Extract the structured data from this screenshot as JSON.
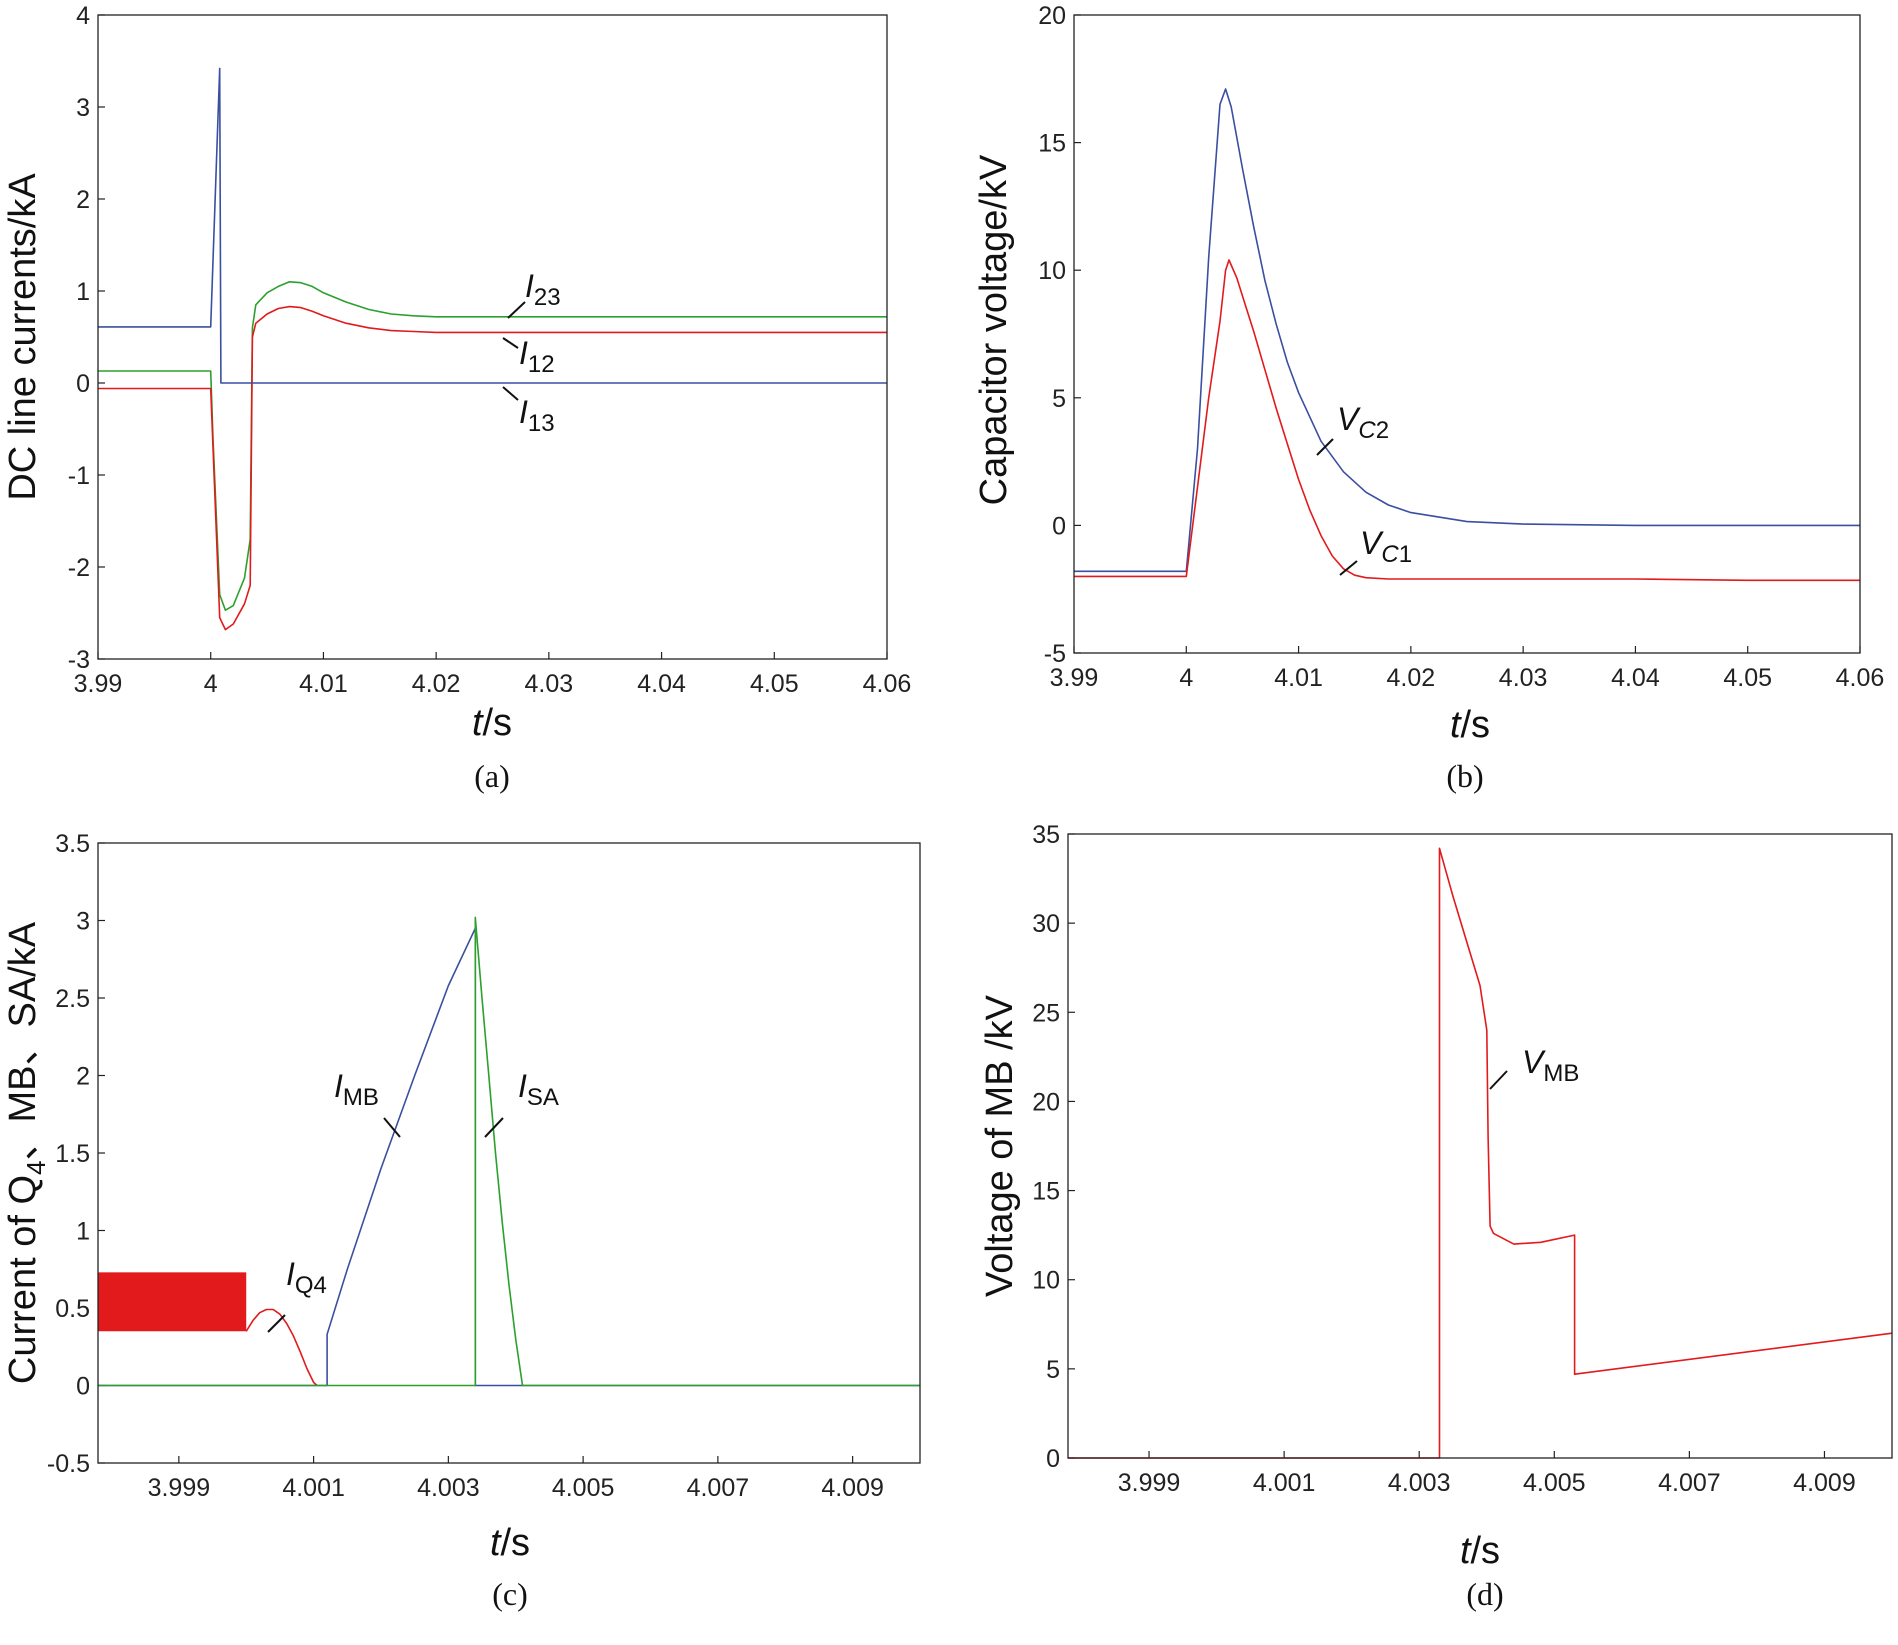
{
  "figure_captions": [
    "(a)",
    "(b)",
    "(c)",
    "(d)"
  ],
  "chart_data": [
    {
      "id": "a",
      "type": "line",
      "caption": "(a)",
      "ylabel": "DC line currents/kA",
      "xlabel_italic": "t",
      "xlabel_rest": "/s",
      "xlim": [
        3.99,
        4.06
      ],
      "ylim": [
        -3,
        4
      ],
      "xticks": [
        "3.99",
        "4",
        "4.01",
        "4.02",
        "4.03",
        "4.04",
        "4.05",
        "4.06"
      ],
      "yticks": [
        "-3",
        "-2",
        "-1",
        "0",
        "1",
        "2",
        "3",
        "4"
      ],
      "series": [
        {
          "name": "I23",
          "color": "#2ca02c",
          "x": [
            3.99,
            4.0,
            4.0002,
            4.0008,
            4.0013,
            4.002,
            4.003,
            4.0035,
            4.0037,
            4.004,
            4.005,
            4.006,
            4.007,
            4.008,
            4.009,
            4.01,
            4.012,
            4.014,
            4.016,
            4.018,
            4.02,
            4.025,
            4.03,
            4.04,
            4.05,
            4.06
          ],
          "y": [
            0.13,
            0.13,
            -0.6,
            -2.3,
            -2.47,
            -2.42,
            -2.12,
            -1.7,
            0.6,
            0.85,
            0.98,
            1.05,
            1.1,
            1.09,
            1.05,
            0.98,
            0.88,
            0.8,
            0.75,
            0.73,
            0.72,
            0.72,
            0.72,
            0.72,
            0.72,
            0.72
          ]
        },
        {
          "name": "I12",
          "color": "#e31a1c",
          "x": [
            3.99,
            4.0,
            4.0002,
            4.0008,
            4.0013,
            4.002,
            4.003,
            4.0035,
            4.0037,
            4.004,
            4.005,
            4.006,
            4.007,
            4.008,
            4.009,
            4.01,
            4.012,
            4.014,
            4.016,
            4.018,
            4.02,
            4.025,
            4.03,
            4.04,
            4.05,
            4.06
          ],
          "y": [
            -0.06,
            -0.06,
            -0.7,
            -2.55,
            -2.68,
            -2.62,
            -2.4,
            -2.2,
            0.5,
            0.65,
            0.75,
            0.81,
            0.83,
            0.82,
            0.78,
            0.73,
            0.65,
            0.6,
            0.57,
            0.56,
            0.55,
            0.55,
            0.55,
            0.55,
            0.55,
            0.55
          ]
        },
        {
          "name": "I13",
          "color": "#3a4fa0",
          "x": [
            3.99,
            4.0,
            4.0008,
            4.0009,
            4.06
          ],
          "y": [
            0.61,
            0.61,
            3.42,
            0.0,
            0.0
          ]
        }
      ],
      "annotations": [
        {
          "base": "I",
          "sub": "23"
        },
        {
          "base": "I",
          "sub": "12"
        },
        {
          "base": "I",
          "sub": "13"
        }
      ]
    },
    {
      "id": "b",
      "type": "line",
      "caption": "(b)",
      "ylabel": "Capacitor voltage/kV",
      "xlabel_italic": "t",
      "xlabel_rest": "/s",
      "xlim": [
        3.99,
        4.06
      ],
      "ylim": [
        -5,
        20
      ],
      "xticks": [
        "3.99",
        "4",
        "4.01",
        "4.02",
        "4.03",
        "4.04",
        "4.05",
        "4.06"
      ],
      "yticks": [
        "-5",
        "0",
        "5",
        "10",
        "15",
        "20"
      ],
      "series": [
        {
          "name": "VC2",
          "color": "#3a4fa0",
          "x": [
            3.99,
            4.0,
            4.001,
            4.002,
            4.003,
            4.0035,
            4.004,
            4.005,
            4.006,
            4.007,
            4.008,
            4.009,
            4.01,
            4.012,
            4.014,
            4.016,
            4.018,
            4.02,
            4.025,
            4.03,
            4.04,
            4.05,
            4.06
          ],
          "y": [
            -1.8,
            -1.8,
            3.0,
            10.5,
            16.5,
            17.1,
            16.4,
            14.0,
            11.7,
            9.6,
            7.9,
            6.4,
            5.2,
            3.3,
            2.1,
            1.3,
            0.8,
            0.5,
            0.15,
            0.05,
            0.0,
            0.0,
            0.0
          ]
        },
        {
          "name": "VC1",
          "color": "#e31a1c",
          "x": [
            3.99,
            4.0,
            4.001,
            4.002,
            4.003,
            4.0035,
            4.0038,
            4.0045,
            4.005,
            4.006,
            4.007,
            4.008,
            4.009,
            4.01,
            4.011,
            4.012,
            4.013,
            4.014,
            4.015,
            4.016,
            4.018,
            4.02,
            4.03,
            4.04,
            4.05,
            4.06
          ],
          "y": [
            -2.0,
            -2.0,
            1.5,
            5.0,
            8.0,
            10.0,
            10.4,
            9.7,
            9.0,
            7.6,
            6.1,
            4.6,
            3.2,
            1.8,
            0.6,
            -0.4,
            -1.2,
            -1.7,
            -1.95,
            -2.05,
            -2.1,
            -2.1,
            -2.1,
            -2.1,
            -2.15,
            -2.15
          ]
        }
      ],
      "annotations": [
        {
          "base": "V",
          "sub": "C",
          "sub2": "2"
        },
        {
          "base": "V",
          "sub": "C",
          "sub2": "1"
        }
      ]
    },
    {
      "id": "c",
      "type": "line",
      "caption": "(c)",
      "ylabel": "Current of Q4、MB、SA/kA",
      "ylabel_parts": [
        "Current of Q",
        "4",
        "、MB、SA/kA"
      ],
      "xlabel_italic": "t",
      "xlabel_rest": "/s",
      "xlim": [
        3.9978,
        4.01
      ],
      "ylim": [
        -0.5,
        3.5
      ],
      "xticks": [
        "3.999",
        "4.001",
        "4.003",
        "4.005",
        "4.007",
        "4.009"
      ],
      "xtick_values": [
        3.999,
        4.001,
        4.003,
        4.005,
        4.007,
        4.009
      ],
      "yticks": [
        "-0.5",
        "0",
        "0.5",
        "1",
        "1.5",
        "2",
        "2.5",
        "3",
        "3.5"
      ],
      "series": [
        {
          "name": "IQ4",
          "color": "#e31a1c",
          "x": [
            3.9978,
            4.0,
            4.0001,
            4.0002,
            4.0003,
            4.0004,
            4.0005,
            4.0006,
            4.0007,
            4.0008,
            4.0009,
            4.001,
            4.00105
          ],
          "y": [
            0.55,
            0.35,
            0.42,
            0.47,
            0.49,
            0.49,
            0.46,
            0.4,
            0.32,
            0.22,
            0.11,
            0.02,
            0.0
          ],
          "band": {
            "x0": 3.9978,
            "x1": 4.0,
            "ymin": 0.35,
            "ymax": 0.73
          }
        },
        {
          "name": "IMB",
          "color": "#3a4fa0",
          "x": [
            3.9978,
            4.0012,
            4.0012,
            4.0015,
            4.002,
            4.0025,
            4.003,
            4.0034,
            4.0034,
            4.01
          ],
          "y": [
            0.0,
            0.0,
            0.33,
            0.75,
            1.4,
            2.0,
            2.58,
            2.95,
            0.0,
            0.0
          ]
        },
        {
          "name": "ISA",
          "color": "#2ca02c",
          "x": [
            3.9978,
            4.0034,
            4.0034,
            4.0035,
            4.0036,
            4.0037,
            4.0038,
            4.0039,
            4.004,
            4.0041,
            4.01
          ],
          "y": [
            0.0,
            0.0,
            3.02,
            2.5,
            2.0,
            1.5,
            1.05,
            0.65,
            0.3,
            0.0,
            0.0
          ]
        }
      ],
      "annotations": [
        {
          "base": "I",
          "sub": "Q4"
        },
        {
          "base": "I",
          "sub": "MB"
        },
        {
          "base": "I",
          "sub": "SA"
        }
      ]
    },
    {
      "id": "d",
      "type": "line",
      "caption": "(d)",
      "ylabel": "Voltage of MB /kV",
      "xlabel_italic": "t",
      "xlabel_rest": "/s",
      "xlim": [
        3.9978,
        4.01
      ],
      "ylim": [
        0,
        35
      ],
      "xticks": [
        "3.999",
        "4.001",
        "4.003",
        "4.005",
        "4.007",
        "4.009"
      ],
      "xtick_values": [
        3.999,
        4.001,
        4.003,
        4.005,
        4.007,
        4.009
      ],
      "yticks": [
        "0",
        "5",
        "10",
        "15",
        "20",
        "25",
        "30",
        "35"
      ],
      "series": [
        {
          "name": "VMB",
          "color": "#e31a1c",
          "x": [
            3.9978,
            4.0033,
            4.0033,
            4.0035,
            4.0037,
            4.0039,
            4.004,
            4.00402,
            4.00405,
            4.0041,
            4.0044,
            4.0048,
            4.0053,
            4.0053,
            4.01
          ],
          "y": [
            0.0,
            0.0,
            34.2,
            31.5,
            29.0,
            26.5,
            24.0,
            18.0,
            13.0,
            12.6,
            12.0,
            12.1,
            12.5,
            4.7,
            7.0
          ]
        }
      ],
      "annotations": [
        {
          "base": "V",
          "sub": "MB"
        }
      ]
    }
  ]
}
